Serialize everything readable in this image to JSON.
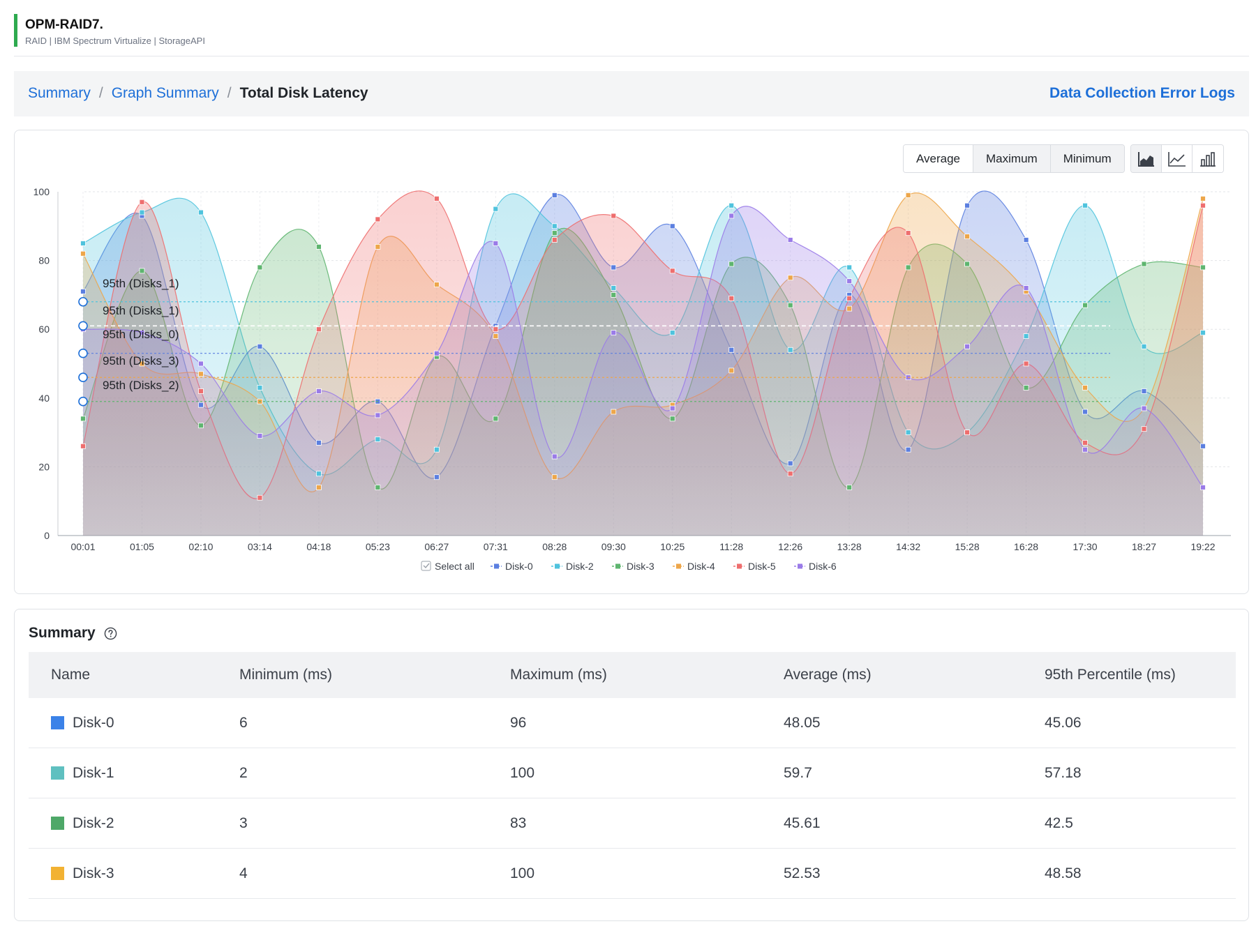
{
  "header": {
    "title": "OPM-RAID7.",
    "subtitle": "RAID | IBM Spectrum Virtualize | StorageAPI",
    "accent_color": "#2eaa4f"
  },
  "breadcrumb": {
    "items": [
      "Summary",
      "Graph Summary"
    ],
    "current": "Total Disk Latency",
    "separator": "/"
  },
  "links": {
    "error_logs": "Data Collection Error Logs"
  },
  "toolbar": {
    "aggregation_options": [
      "Average",
      "Maximum",
      "Minimum"
    ],
    "selected_aggregation": "Maximum",
    "chart_type_icons": [
      "area-chart-icon",
      "line-chart-icon",
      "bar-chart-icon"
    ],
    "selected_chart_type": "area-chart-icon"
  },
  "legend": {
    "select_all_label": "Select all",
    "select_all_checked": true
  },
  "chart_data": {
    "type": "area",
    "title": "",
    "xlabel": "",
    "ylabel": "",
    "ylim": [
      0,
      100
    ],
    "yticks": [
      0,
      20,
      40,
      60,
      80,
      100
    ],
    "grid": true,
    "legend_position": "bottom",
    "x": [
      "00:01",
      "01:05",
      "02:10",
      "03:14",
      "04:18",
      "05:23",
      "06:27",
      "07:31",
      "08:28",
      "09:30",
      "10:25",
      "11:28",
      "12:26",
      "13:28",
      "14:32",
      "15:28",
      "16:28",
      "17:30",
      "18:27",
      "19:22"
    ],
    "series": [
      {
        "name": "Disk-0",
        "color": "#5b7fe0",
        "values": [
          71,
          93,
          38,
          55,
          27,
          39,
          17,
          61,
          99,
          78,
          90,
          54,
          21,
          70,
          25,
          96,
          86,
          36,
          42,
          26
        ]
      },
      {
        "name": "Disk-2",
        "color": "#4fc3dd",
        "values": [
          85,
          94,
          94,
          43,
          18,
          28,
          25,
          95,
          90,
          72,
          59,
          96,
          54,
          78,
          30,
          30,
          58,
          96,
          55,
          59
        ]
      },
      {
        "name": "Disk-3",
        "color": "#5eb56f",
        "values": [
          34,
          77,
          32,
          78,
          84,
          14,
          52,
          34,
          88,
          70,
          34,
          79,
          67,
          14,
          78,
          79,
          43,
          67,
          79,
          78
        ]
      },
      {
        "name": "Disk-4",
        "color": "#eda64a",
        "values": [
          82,
          50,
          47,
          39,
          14,
          84,
          73,
          58,
          17,
          36,
          38,
          48,
          75,
          66,
          99,
          87,
          71,
          43,
          37,
          98
        ]
      },
      {
        "name": "Disk-5",
        "color": "#ee6e6e",
        "values": [
          26,
          97,
          42,
          11,
          60,
          92,
          98,
          60,
          86,
          93,
          77,
          69,
          18,
          69,
          88,
          30,
          50,
          27,
          31,
          96
        ]
      },
      {
        "name": "Disk-6",
        "color": "#9a7be8",
        "values": [
          60,
          59,
          50,
          29,
          42,
          35,
          53,
          85,
          23,
          59,
          37,
          93,
          86,
          74,
          46,
          55,
          72,
          25,
          37,
          14
        ]
      }
    ],
    "annotations": [
      {
        "label": "95th (Disks_1)",
        "value": 68,
        "color": "#4fc3dd"
      },
      {
        "label": "95th (Disks_1)",
        "value": 61,
        "color": "#ffffff"
      },
      {
        "label": "95th (Disks_0)",
        "value": 53,
        "color": "#5b7fe0"
      },
      {
        "label": "95th (Disks_3)",
        "value": 46,
        "color": "#eda64a"
      },
      {
        "label": "95th (Disks_2)",
        "value": 39,
        "color": "#5eb56f"
      }
    ]
  },
  "summary": {
    "title": "Summary",
    "columns": [
      "Name",
      "Minimum (ms)",
      "Maximum (ms)",
      "Average (ms)",
      "95th Percentile (ms)"
    ],
    "rows": [
      {
        "name": "Disk-0",
        "color": "#3b82e8",
        "min": "6",
        "max": "96",
        "avg": "48.05",
        "p95": "45.06"
      },
      {
        "name": "Disk-1",
        "color": "#5fc0c0",
        "min": "2",
        "max": "100",
        "avg": "59.7",
        "p95": "57.18"
      },
      {
        "name": "Disk-2",
        "color": "#4ea868",
        "min": "3",
        "max": "83",
        "avg": "45.61",
        "p95": "42.5"
      },
      {
        "name": "Disk-3",
        "color": "#f2b233",
        "min": "4",
        "max": "100",
        "avg": "52.53",
        "p95": "48.58"
      }
    ]
  }
}
